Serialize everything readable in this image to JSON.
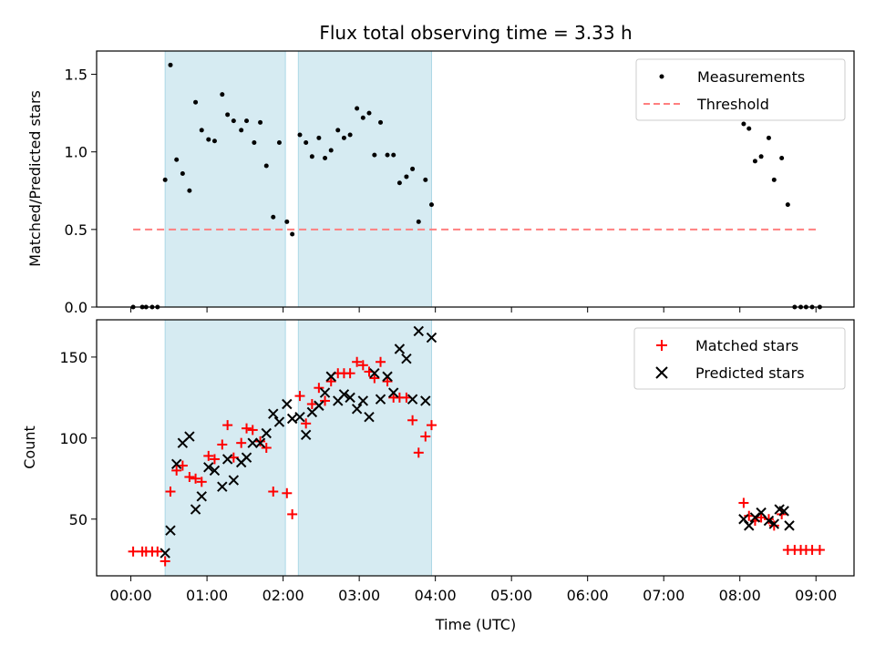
{
  "chart_data": [
    {
      "type": "scatter",
      "title": "Flux total observing time = 3.33 h",
      "ylabel": "Matched/Predicted stars",
      "xlim": [
        -0.45,
        9.5
      ],
      "ylim": [
        0,
        1.65
      ],
      "yticks": [
        0.0,
        0.5,
        1.0,
        1.5
      ],
      "ytick_labels": [
        "0.0",
        "0.5",
        "1.0",
        "1.5"
      ],
      "shaded_intervals": [
        [
          0.45,
          2.03
        ],
        [
          2.2,
          3.95
        ]
      ],
      "legend": {
        "position": "top-right",
        "entries": [
          "Measurements",
          "Threshold"
        ]
      },
      "series": [
        {
          "name": "Measurements",
          "marker": "dot",
          "color": "#000000",
          "points": [
            [
              0.03,
              0.0
            ],
            [
              0.15,
              0.0
            ],
            [
              0.2,
              0.0
            ],
            [
              0.28,
              0.0
            ],
            [
              0.35,
              0.0
            ],
            [
              0.45,
              0.82
            ],
            [
              0.52,
              1.56
            ],
            [
              0.6,
              0.95
            ],
            [
              0.68,
              0.86
            ],
            [
              0.77,
              0.75
            ],
            [
              0.85,
              1.32
            ],
            [
              0.93,
              1.14
            ],
            [
              1.02,
              1.08
            ],
            [
              1.1,
              1.07
            ],
            [
              1.2,
              1.37
            ],
            [
              1.27,
              1.24
            ],
            [
              1.35,
              1.2
            ],
            [
              1.45,
              1.14
            ],
            [
              1.52,
              1.2
            ],
            [
              1.62,
              1.06
            ],
            [
              1.7,
              1.19
            ],
            [
              1.78,
              0.91
            ],
            [
              1.87,
              0.58
            ],
            [
              1.95,
              1.06
            ],
            [
              2.05,
              0.55
            ],
            [
              2.12,
              0.47
            ],
            [
              2.22,
              1.11
            ],
            [
              2.3,
              1.06
            ],
            [
              2.38,
              0.97
            ],
            [
              2.47,
              1.09
            ],
            [
              2.55,
              0.96
            ],
            [
              2.63,
              1.01
            ],
            [
              2.72,
              1.14
            ],
            [
              2.8,
              1.09
            ],
            [
              2.88,
              1.11
            ],
            [
              2.97,
              1.28
            ],
            [
              3.05,
              1.22
            ],
            [
              3.13,
              1.25
            ],
            [
              3.2,
              0.98
            ],
            [
              3.28,
              1.19
            ],
            [
              3.37,
              0.98
            ],
            [
              3.45,
              0.98
            ],
            [
              3.53,
              0.8
            ],
            [
              3.62,
              0.84
            ],
            [
              3.7,
              0.89
            ],
            [
              3.78,
              0.55
            ],
            [
              3.87,
              0.82
            ],
            [
              3.95,
              0.66
            ],
            [
              8.05,
              1.18
            ],
            [
              8.12,
              1.15
            ],
            [
              8.2,
              0.94
            ],
            [
              8.28,
              0.97
            ],
            [
              8.38,
              1.09
            ],
            [
              8.45,
              0.82
            ],
            [
              8.55,
              0.96
            ],
            [
              8.63,
              0.66
            ],
            [
              8.72,
              0.0
            ],
            [
              8.8,
              0.0
            ],
            [
              8.87,
              0.0
            ],
            [
              8.95,
              0.0
            ],
            [
              9.05,
              0.0
            ]
          ]
        },
        {
          "name": "Threshold",
          "style": "dashed",
          "color": "#ff7f7f",
          "x": [
            0.03,
            9.05
          ],
          "y": [
            0.5,
            0.5
          ]
        }
      ]
    },
    {
      "type": "scatter",
      "xlabel": "Time (UTC)",
      "ylabel": "Count",
      "xlim": [
        -0.45,
        9.5
      ],
      "ylim": [
        15,
        173
      ],
      "yticks": [
        50,
        100,
        150
      ],
      "ytick_labels": [
        "50",
        "100",
        "150"
      ],
      "xticks": [
        0,
        1,
        2,
        3,
        4,
        5,
        6,
        7,
        8,
        9
      ],
      "xtick_labels": [
        "00:00",
        "01:00",
        "02:00",
        "03:00",
        "04:00",
        "05:00",
        "06:00",
        "07:00",
        "08:00",
        "09:00"
      ],
      "shaded_intervals": [
        [
          0.45,
          2.03
        ],
        [
          2.2,
          3.95
        ]
      ],
      "legend": {
        "position": "top-right",
        "entries": [
          "Matched stars",
          "Predicted stars"
        ]
      },
      "series": [
        {
          "name": "Matched stars",
          "marker": "plus",
          "color": "#ff0000",
          "points": [
            [
              0.03,
              30
            ],
            [
              0.15,
              30
            ],
            [
              0.2,
              30
            ],
            [
              0.28,
              30
            ],
            [
              0.35,
              30
            ],
            [
              0.45,
              24
            ],
            [
              0.52,
              67
            ],
            [
              0.6,
              80
            ],
            [
              0.68,
              83
            ],
            [
              0.77,
              76
            ],
            [
              0.85,
              75
            ],
            [
              0.93,
              73
            ],
            [
              1.02,
              89
            ],
            [
              1.1,
              87
            ],
            [
              1.2,
              96
            ],
            [
              1.27,
              108
            ],
            [
              1.35,
              88
            ],
            [
              1.45,
              97
            ],
            [
              1.52,
              106
            ],
            [
              1.6,
              105
            ],
            [
              1.7,
              98
            ],
            [
              1.78,
              94
            ],
            [
              1.87,
              67
            ],
            [
              2.05,
              66
            ],
            [
              2.12,
              53
            ],
            [
              2.22,
              126
            ],
            [
              2.3,
              109
            ],
            [
              2.38,
              121
            ],
            [
              2.47,
              131
            ],
            [
              2.55,
              123
            ],
            [
              2.63,
              135
            ],
            [
              2.72,
              140
            ],
            [
              2.8,
              140
            ],
            [
              2.88,
              140
            ],
            [
              2.97,
              147
            ],
            [
              3.05,
              145
            ],
            [
              3.13,
              141
            ],
            [
              3.2,
              137
            ],
            [
              3.28,
              147
            ],
            [
              3.37,
              135
            ],
            [
              3.45,
              125
            ],
            [
              3.53,
              125
            ],
            [
              3.62,
              125
            ],
            [
              3.7,
              111
            ],
            [
              3.78,
              91
            ],
            [
              3.87,
              101
            ],
            [
              3.95,
              108
            ],
            [
              8.05,
              60
            ],
            [
              8.12,
              52
            ],
            [
              8.2,
              49
            ],
            [
              8.28,
              51
            ],
            [
              8.38,
              50
            ],
            [
              8.45,
              46
            ],
            [
              8.55,
              53
            ],
            [
              8.63,
              31
            ],
            [
              8.72,
              31
            ],
            [
              8.8,
              31
            ],
            [
              8.87,
              31
            ],
            [
              8.95,
              31
            ],
            [
              9.05,
              31
            ]
          ]
        },
        {
          "name": "Predicted stars",
          "marker": "x",
          "color": "#000000",
          "points": [
            [
              0.45,
              29
            ],
            [
              0.52,
              43
            ],
            [
              0.6,
              84
            ],
            [
              0.68,
              97
            ],
            [
              0.77,
              101
            ],
            [
              0.85,
              56
            ],
            [
              0.93,
              64
            ],
            [
              1.02,
              82
            ],
            [
              1.1,
              80
            ],
            [
              1.2,
              70
            ],
            [
              1.27,
              87
            ],
            [
              1.35,
              74
            ],
            [
              1.45,
              85
            ],
            [
              1.52,
              88
            ],
            [
              1.6,
              97
            ],
            [
              1.7,
              97
            ],
            [
              1.78,
              103
            ],
            [
              1.87,
              115
            ],
            [
              1.95,
              110
            ],
            [
              2.05,
              121
            ],
            [
              2.12,
              112
            ],
            [
              2.22,
              113
            ],
            [
              2.3,
              102
            ],
            [
              2.38,
              116
            ],
            [
              2.47,
              120
            ],
            [
              2.55,
              128
            ],
            [
              2.63,
              138
            ],
            [
              2.72,
              123
            ],
            [
              2.8,
              127
            ],
            [
              2.88,
              125
            ],
            [
              2.97,
              118
            ],
            [
              3.05,
              123
            ],
            [
              3.13,
              113
            ],
            [
              3.2,
              140
            ],
            [
              3.28,
              124
            ],
            [
              3.37,
              138
            ],
            [
              3.45,
              128
            ],
            [
              3.53,
              155
            ],
            [
              3.62,
              149
            ],
            [
              3.7,
              124
            ],
            [
              3.78,
              166
            ],
            [
              3.87,
              123
            ],
            [
              3.95,
              162
            ],
            [
              8.05,
              50
            ],
            [
              8.12,
              46
            ],
            [
              8.2,
              51
            ],
            [
              8.28,
              54
            ],
            [
              8.38,
              49
            ],
            [
              8.45,
              47
            ],
            [
              8.52,
              56
            ],
            [
              8.58,
              55
            ],
            [
              8.65,
              46
            ]
          ]
        }
      ]
    }
  ]
}
